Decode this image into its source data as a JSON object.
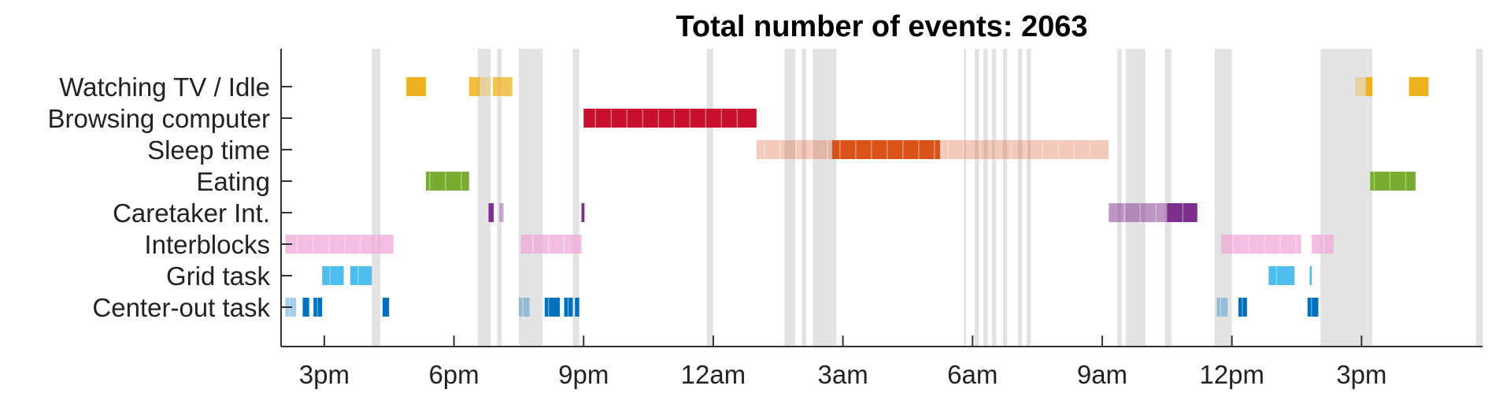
{
  "chart_data": {
    "type": "timeline",
    "title": "Total number of events: 2063",
    "xlim": [
      14,
      41.8
    ],
    "x_ticks": [
      {
        "value": 15,
        "label": "3pm"
      },
      {
        "value": 18,
        "label": "6pm"
      },
      {
        "value": 21,
        "label": "9pm"
      },
      {
        "value": 24,
        "label": "12am"
      },
      {
        "value": 27,
        "label": "3am"
      },
      {
        "value": 30,
        "label": "6am"
      },
      {
        "value": 33,
        "label": "9am"
      },
      {
        "value": 36,
        "label": "12pm"
      },
      {
        "value": 39,
        "label": "3pm"
      }
    ],
    "categories": [
      "Watching TV / Idle",
      "Browsing computer",
      "Sleep time",
      "Eating",
      "Caretaker Int.",
      "Interblocks",
      "Grid task",
      "Center-out task"
    ],
    "grid": false,
    "shaded_periods": [
      [
        16.1,
        16.3
      ],
      [
        18.55,
        18.85
      ],
      [
        19.0,
        19.1
      ],
      [
        19.5,
        20.05
      ],
      [
        20.75,
        20.9
      ],
      [
        23.85,
        24.0
      ],
      [
        25.65,
        25.9
      ],
      [
        26.05,
        26.15
      ],
      [
        26.3,
        26.85
      ],
      [
        29.8,
        29.85
      ],
      [
        30.05,
        30.15
      ],
      [
        30.25,
        30.35
      ],
      [
        30.45,
        30.55
      ],
      [
        30.7,
        30.8
      ],
      [
        31.05,
        31.15
      ],
      [
        31.25,
        31.35
      ],
      [
        33.35,
        33.45
      ],
      [
        33.55,
        34.0
      ],
      [
        34.45,
        34.6
      ],
      [
        35.6,
        36.0
      ],
      [
        38.05,
        39.25
      ],
      [
        41.65,
        41.8
      ]
    ],
    "series": [
      {
        "name": "Watching TV / Idle",
        "color": "#EDB120",
        "segments": [
          {
            "start": 16.9,
            "end": 17.35,
            "alpha": 1.0
          },
          {
            "start": 18.35,
            "end": 18.6,
            "alpha": 0.85
          },
          {
            "start": 18.6,
            "end": 18.85,
            "alpha": 0.35
          },
          {
            "start": 18.9,
            "end": 19.35,
            "alpha": 0.75
          },
          {
            "start": 38.85,
            "end": 39.1,
            "alpha": 0.35
          },
          {
            "start": 39.1,
            "end": 39.25,
            "alpha": 1.0
          },
          {
            "start": 40.1,
            "end": 40.55,
            "alpha": 1.0
          }
        ]
      },
      {
        "name": "Browsing computer",
        "color": "#C8102E",
        "segments": [
          {
            "start": 21.0,
            "end": 25.0,
            "alpha": 1.0
          }
        ]
      },
      {
        "name": "Sleep time",
        "color": "#D95319",
        "segments": [
          {
            "start": 25.0,
            "end": 26.75,
            "alpha": 0.3
          },
          {
            "start": 26.75,
            "end": 29.25,
            "alpha": 1.0
          },
          {
            "start": 29.25,
            "end": 33.15,
            "alpha": 0.3
          }
        ]
      },
      {
        "name": "Eating",
        "color": "#77AC30",
        "segments": [
          {
            "start": 17.35,
            "end": 18.35,
            "alpha": 1.0
          },
          {
            "start": 39.2,
            "end": 40.25,
            "alpha": 1.0
          }
        ]
      },
      {
        "name": "Caretaker Int.",
        "color": "#7E2F8E",
        "segments": [
          {
            "start": 18.8,
            "end": 18.92,
            "alpha": 1.0
          },
          {
            "start": 19.05,
            "end": 19.15,
            "alpha": 0.4
          },
          {
            "start": 20.95,
            "end": 21.02,
            "alpha": 1.0
          },
          {
            "start": 33.15,
            "end": 34.5,
            "alpha": 0.5
          },
          {
            "start": 34.5,
            "end": 35.2,
            "alpha": 1.0
          }
        ]
      },
      {
        "name": "Interblocks",
        "color": "#F0A7D8",
        "segments": [
          {
            "start": 14.1,
            "end": 16.6,
            "alpha": 0.75
          },
          {
            "start": 19.55,
            "end": 20.95,
            "alpha": 0.75
          },
          {
            "start": 35.75,
            "end": 37.6,
            "alpha": 0.75
          },
          {
            "start": 37.85,
            "end": 38.35,
            "alpha": 0.75
          }
        ]
      },
      {
        "name": "Grid task",
        "color": "#4DBEEE",
        "segments": [
          {
            "start": 14.95,
            "end": 15.45,
            "alpha": 1.0
          },
          {
            "start": 15.6,
            "end": 16.1,
            "alpha": 1.0
          },
          {
            "start": 36.85,
            "end": 37.45,
            "alpha": 1.0
          },
          {
            "start": 37.8,
            "end": 37.85,
            "alpha": 1.0
          }
        ]
      },
      {
        "name": "Center-out task",
        "color": "#0072BD",
        "segments": [
          {
            "start": 14.1,
            "end": 14.35,
            "alpha": 0.35
          },
          {
            "start": 14.5,
            "end": 14.65,
            "alpha": 1.0
          },
          {
            "start": 14.75,
            "end": 14.95,
            "alpha": 1.0
          },
          {
            "start": 16.35,
            "end": 16.5,
            "alpha": 1.0
          },
          {
            "start": 19.5,
            "end": 19.75,
            "alpha": 0.35
          },
          {
            "start": 20.1,
            "end": 20.45,
            "alpha": 1.0
          },
          {
            "start": 20.55,
            "end": 20.75,
            "alpha": 1.0
          },
          {
            "start": 20.8,
            "end": 20.9,
            "alpha": 1.0
          },
          {
            "start": 35.65,
            "end": 35.9,
            "alpha": 0.35
          },
          {
            "start": 36.15,
            "end": 36.35,
            "alpha": 1.0
          },
          {
            "start": 37.75,
            "end": 38.0,
            "alpha": 1.0
          }
        ]
      }
    ]
  }
}
